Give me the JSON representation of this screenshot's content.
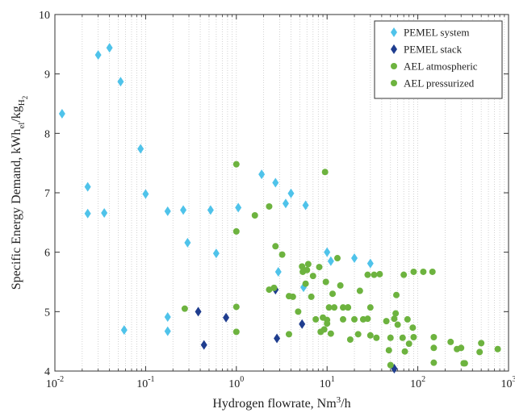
{
  "chart_data": {
    "type": "scatter",
    "xscale": "log",
    "xlim": [
      0.01,
      1000
    ],
    "ylim": [
      4,
      10
    ],
    "grid": "vertical-minor-dotted",
    "legend_position": "top-right",
    "xlabel": {
      "main": "Hydrogen flowrate, Nm",
      "sup": "3",
      "tail": "/h"
    },
    "ylabel": {
      "main": "Specific Energy Demand, kWh",
      "sub1": "el",
      "mid": "/kg",
      "sub2": "H",
      "sub3": "2"
    },
    "x_ticks": [
      {
        "value": 0.01,
        "base": "10",
        "exp": "-2"
      },
      {
        "value": 0.1,
        "base": "10",
        "exp": "-1"
      },
      {
        "value": 1,
        "base": "10",
        "exp": "0"
      },
      {
        "value": 10,
        "base": "10",
        "exp": "1"
      },
      {
        "value": 100,
        "base": "10",
        "exp": "2"
      },
      {
        "value": 1000,
        "base": "10",
        "exp": "3"
      }
    ],
    "y_ticks": [
      4,
      5,
      6,
      7,
      8,
      9,
      10
    ],
    "series": [
      {
        "name": "PEMEL system",
        "marker": "diamond",
        "color": "#4fc3ea",
        "points": [
          [
            0.012,
            8.33
          ],
          [
            0.023,
            7.1
          ],
          [
            0.023,
            6.65
          ],
          [
            0.03,
            9.32
          ],
          [
            0.035,
            6.66
          ],
          [
            0.04,
            9.44
          ],
          [
            0.053,
            8.87
          ],
          [
            0.058,
            4.69
          ],
          [
            0.088,
            7.74
          ],
          [
            0.1,
            6.98
          ],
          [
            0.175,
            6.69
          ],
          [
            0.175,
            4.91
          ],
          [
            0.175,
            4.67
          ],
          [
            0.26,
            6.71
          ],
          [
            0.29,
            6.16
          ],
          [
            0.52,
            6.71
          ],
          [
            0.6,
            5.98
          ],
          [
            1.05,
            6.75
          ],
          [
            1.9,
            7.31
          ],
          [
            2.7,
            7.17
          ],
          [
            2.9,
            5.67
          ],
          [
            3.5,
            6.82
          ],
          [
            4.0,
            6.99
          ],
          [
            5.5,
            5.41
          ],
          [
            5.8,
            6.79
          ],
          [
            10,
            6.0
          ],
          [
            11,
            5.85
          ],
          [
            20,
            5.9
          ],
          [
            30,
            5.81
          ]
        ]
      },
      {
        "name": "PEMEL stack",
        "marker": "diamond",
        "color": "#1f3d8f",
        "points": [
          [
            0.38,
            5.0
          ],
          [
            0.44,
            4.44
          ],
          [
            0.77,
            4.9
          ],
          [
            2.7,
            5.37
          ],
          [
            2.8,
            4.55
          ],
          [
            5.3,
            4.79
          ],
          [
            55,
            4.04
          ]
        ]
      },
      {
        "name": "AEL atmospheric",
        "marker": "circle",
        "color": "#6db33f",
        "points": [
          [
            0.27,
            5.05
          ],
          [
            1.0,
            7.48
          ],
          [
            1.0,
            6.35
          ],
          [
            1.0,
            5.08
          ],
          [
            1.0,
            4.66
          ],
          [
            1.6,
            6.62
          ],
          [
            2.3,
            6.77
          ],
          [
            2.7,
            6.1
          ],
          [
            3.2,
            5.96
          ],
          [
            3.8,
            5.26
          ],
          [
            4.2,
            5.25
          ],
          [
            4.8,
            5.0
          ],
          [
            5.3,
            5.76
          ],
          [
            5.8,
            5.47
          ],
          [
            6.2,
            5.8
          ],
          [
            7.0,
            5.6
          ],
          [
            7.5,
            4.87
          ],
          [
            8.5,
            4.66
          ],
          [
            9.3,
            4.7
          ],
          [
            9.5,
            7.35
          ],
          [
            9.7,
            5.5
          ],
          [
            10,
            4.8
          ],
          [
            10.5,
            5.07
          ],
          [
            11,
            4.63
          ],
          [
            11.5,
            5.3
          ],
          [
            12,
            5.07
          ],
          [
            14,
            5.44
          ],
          [
            15,
            5.07
          ],
          [
            17,
            5.07
          ],
          [
            18,
            4.53
          ],
          [
            20,
            4.87
          ],
          [
            22,
            4.62
          ],
          [
            25,
            4.87
          ],
          [
            28,
            5.62
          ],
          [
            30,
            5.07
          ],
          [
            33,
            5.62
          ]
        ]
      },
      {
        "name": "AEL pressurized",
        "marker": "circle",
        "color": "#6db33f",
        "points": [
          [
            2.3,
            5.37
          ],
          [
            2.6,
            5.4
          ],
          [
            3.8,
            4.62
          ],
          [
            5.4,
            5.67
          ],
          [
            6.0,
            5.7
          ],
          [
            6.7,
            5.25
          ],
          [
            8.2,
            5.75
          ],
          [
            9.0,
            4.9
          ],
          [
            10,
            4.86
          ],
          [
            13,
            5.9
          ],
          [
            15,
            4.87
          ],
          [
            17,
            5.07
          ],
          [
            23,
            5.35
          ],
          [
            28,
            4.88
          ],
          [
            30,
            4.6
          ],
          [
            35,
            4.56
          ],
          [
            38,
            5.63
          ],
          [
            45,
            4.84
          ],
          [
            48,
            4.35
          ],
          [
            50,
            4.1
          ],
          [
            50,
            4.56
          ],
          [
            55,
            4.88
          ],
          [
            57,
            4.97
          ],
          [
            58,
            5.28
          ],
          [
            60,
            4.78
          ],
          [
            68,
            4.56
          ],
          [
            70,
            5.62
          ],
          [
            72,
            4.33
          ],
          [
            77,
            4.87
          ],
          [
            80,
            4.46
          ],
          [
            88,
            4.73
          ],
          [
            90,
            5.67
          ],
          [
            90,
            4.57
          ],
          [
            115,
            5.67
          ],
          [
            145,
            5.67
          ],
          [
            150,
            4.57
          ],
          [
            150,
            4.39
          ],
          [
            150,
            4.14
          ],
          [
            230,
            4.49
          ],
          [
            270,
            4.37
          ],
          [
            300,
            4.39
          ],
          [
            320,
            4.13
          ],
          [
            330,
            4.13
          ],
          [
            480,
            4.32
          ],
          [
            500,
            4.47
          ],
          [
            760,
            4.37
          ]
        ]
      }
    ]
  }
}
